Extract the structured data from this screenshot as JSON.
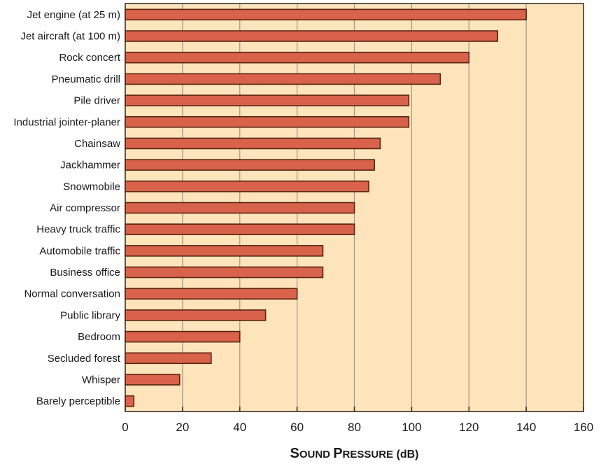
{
  "chart_data": {
    "type": "bar",
    "orientation": "horizontal",
    "title": "",
    "xlabel": "Sound Pressure (dB)",
    "xlabel_parts": {
      "big1": "S",
      "small1": "OUND ",
      "big2": "P",
      "small2": "RESSURE",
      "unit": " (dB)"
    },
    "ylabel": "",
    "xlim": [
      0,
      160
    ],
    "xticks": [
      0,
      20,
      40,
      60,
      80,
      100,
      120,
      140,
      160
    ],
    "grid": "vertical",
    "legend": "none",
    "categories": [
      "Jet engine (at 25 m)",
      "Jet aircraft (at 100 m)",
      "Rock concert",
      "Pneumatic drill",
      "Pile driver",
      "Industrial jointer-planer",
      "Chainsaw",
      "Jackhammer",
      "Snowmobile",
      "Air compressor",
      "Heavy truck traffic",
      "Automobile traffic",
      "Business office",
      "Normal conversation",
      "Public library",
      "Bedroom",
      "Secluded forest",
      "Whisper",
      "Barely perceptible"
    ],
    "values": [
      140,
      130,
      120,
      110,
      99,
      99,
      89,
      87,
      85,
      80,
      80,
      69,
      69,
      60,
      49,
      40,
      30,
      19,
      3
    ],
    "colors": {
      "bar_fill": "#d9634a",
      "bar_stroke": "#5a2412",
      "plot_background": "#fde4bb",
      "gridline": "#a89a84",
      "axis": "#3b3026"
    }
  }
}
